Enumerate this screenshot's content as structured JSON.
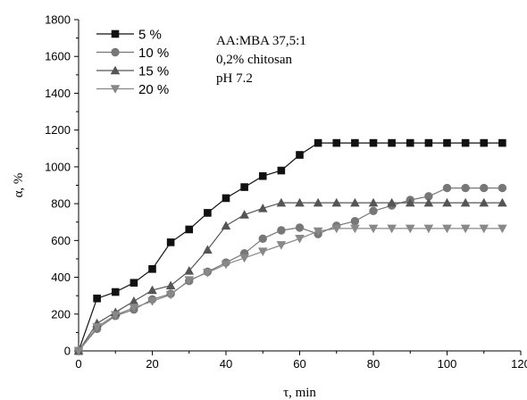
{
  "chart_data": {
    "type": "line",
    "xlabel": "τ, min",
    "ylabel": "α, %",
    "xlim": [
      0,
      120
    ],
    "ylim": [
      0,
      1800
    ],
    "xticks": [
      0,
      20,
      40,
      60,
      80,
      100,
      120
    ],
    "yticks": [
      0,
      200,
      400,
      600,
      800,
      1000,
      1200,
      1400,
      1600,
      1800
    ],
    "grid": false,
    "legend_position": "top-left",
    "annotations": [
      "AA:MBA 37,5:1",
      "0,2% chitosan",
      "pH 7.2"
    ],
    "series": [
      {
        "name": "5 %",
        "marker": "square",
        "color": "#111111",
        "x": [
          0,
          5,
          10,
          15,
          20,
          25,
          30,
          35,
          40,
          45,
          50,
          55,
          60,
          65,
          70,
          75,
          80,
          85,
          90,
          95,
          100,
          105,
          110,
          115
        ],
        "y": [
          0,
          285,
          320,
          370,
          445,
          590,
          660,
          750,
          830,
          890,
          950,
          980,
          1065,
          1130,
          1130,
          1130,
          1130,
          1130,
          1130,
          1130,
          1130,
          1130,
          1130,
          1130
        ]
      },
      {
        "name": "10 %",
        "marker": "circle",
        "color": "#777777",
        "x": [
          0,
          5,
          10,
          15,
          20,
          25,
          30,
          35,
          40,
          45,
          50,
          55,
          60,
          65,
          70,
          75,
          80,
          85,
          90,
          95,
          100,
          105,
          110,
          115
        ],
        "y": [
          0,
          120,
          190,
          225,
          280,
          310,
          380,
          430,
          480,
          530,
          610,
          655,
          670,
          635,
          680,
          705,
          760,
          790,
          820,
          840,
          885,
          885,
          885,
          885
        ]
      },
      {
        "name": "15 %",
        "marker": "triangle-up",
        "color": "#555555",
        "x": [
          0,
          5,
          10,
          15,
          20,
          25,
          30,
          35,
          40,
          45,
          50,
          55,
          60,
          65,
          70,
          75,
          80,
          85,
          90,
          95,
          100,
          105,
          110,
          115
        ],
        "y": [
          0,
          150,
          210,
          270,
          330,
          355,
          435,
          550,
          680,
          740,
          775,
          805,
          805,
          805,
          805,
          805,
          805,
          805,
          805,
          805,
          805,
          805,
          805,
          805
        ]
      },
      {
        "name": "20 %",
        "marker": "triangle-down",
        "color": "#888888",
        "x": [
          0,
          5,
          10,
          15,
          20,
          25,
          30,
          35,
          40,
          45,
          50,
          55,
          60,
          65,
          70,
          75,
          80,
          85,
          90,
          95,
          100,
          105,
          110,
          115
        ],
        "y": [
          0,
          130,
          195,
          235,
          270,
          305,
          385,
          425,
          470,
          505,
          540,
          575,
          610,
          650,
          665,
          665,
          665,
          665,
          665,
          665,
          665,
          665,
          665,
          665
        ]
      }
    ]
  }
}
